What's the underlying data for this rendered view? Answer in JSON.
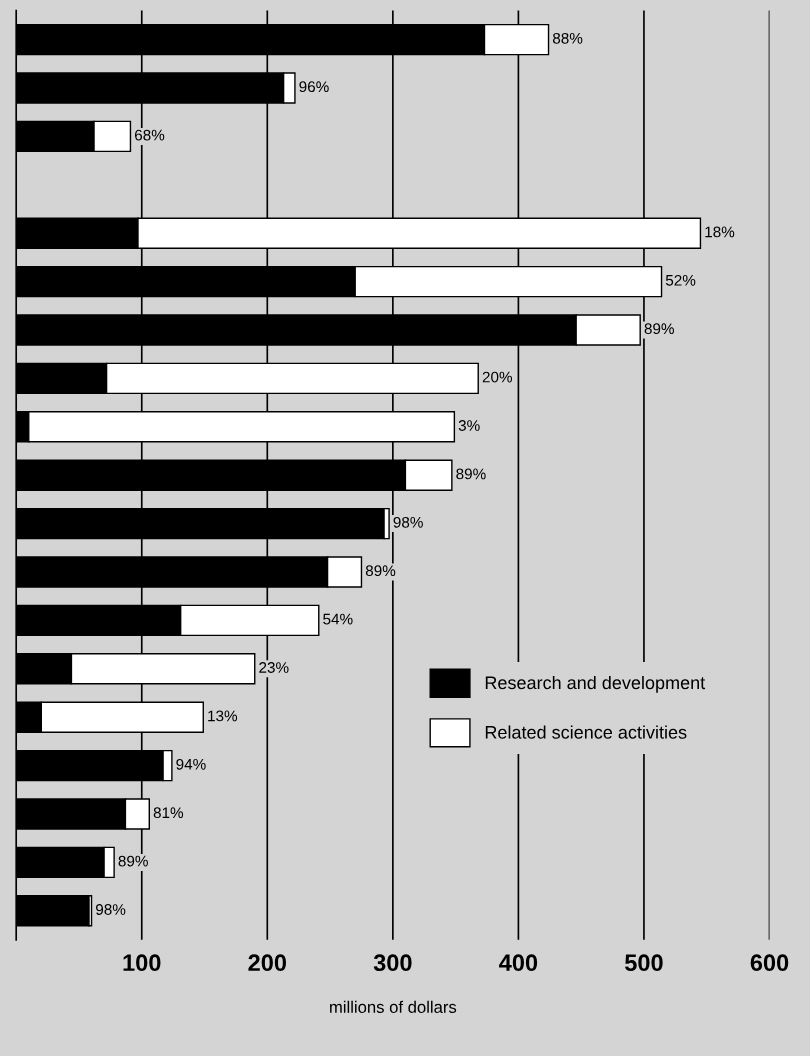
{
  "chart_data": {
    "type": "bar",
    "orientation": "horizontal",
    "stacked": true,
    "xlabel": "millions of dollars",
    "categories": [
      null,
      null,
      null,
      null,
      null,
      null,
      null,
      null,
      null,
      null,
      null,
      null,
      null,
      null,
      null,
      null,
      null,
      null,
      null
    ],
    "series": [
      {
        "name": "Research and development",
        "color": "#000000",
        "values": [
          373,
          213,
          62,
          null,
          97,
          270,
          446,
          72,
          10,
          310,
          293,
          248,
          131,
          44,
          20,
          117,
          87,
          70,
          58
        ]
      },
      {
        "name": "Related science activities",
        "color": "#ffffff",
        "values": [
          51,
          9,
          29,
          null,
          448,
          244,
          51,
          296,
          339,
          37,
          4,
          27,
          110,
          146,
          129,
          7,
          19,
          8,
          2
        ]
      }
    ],
    "annotations": [
      {
        "text": "88%",
        "x": 424
      },
      {
        "text": "96%",
        "x": 222
      },
      {
        "text": "68%",
        "x": 91
      },
      {
        "text": "18%",
        "x": 545
      },
      {
        "text": "52%",
        "x": 514
      },
      {
        "text": "89%",
        "x": 497
      },
      {
        "text": "20%",
        "x": 368
      },
      {
        "text": "3%",
        "x": 349
      },
      {
        "text": "89%",
        "x": 347
      },
      {
        "text": "98%",
        "x": 297
      },
      {
        "text": "89%",
        "x": 275
      },
      {
        "text": "54%",
        "x": 241
      },
      {
        "text": "23%",
        "x": 190
      },
      {
        "text": "13%",
        "x": 149
      },
      {
        "text": "94%",
        "x": 124
      },
      {
        "text": "81%",
        "x": 106
      },
      {
        "text": "89%",
        "x": 78
      },
      {
        "text": "98%",
        "x": 60
      }
    ],
    "xlim": [
      0,
      600
    ],
    "xticks": [
      100,
      200,
      300,
      400,
      500,
      600
    ],
    "grid": "x",
    "legend": "bottom right"
  }
}
